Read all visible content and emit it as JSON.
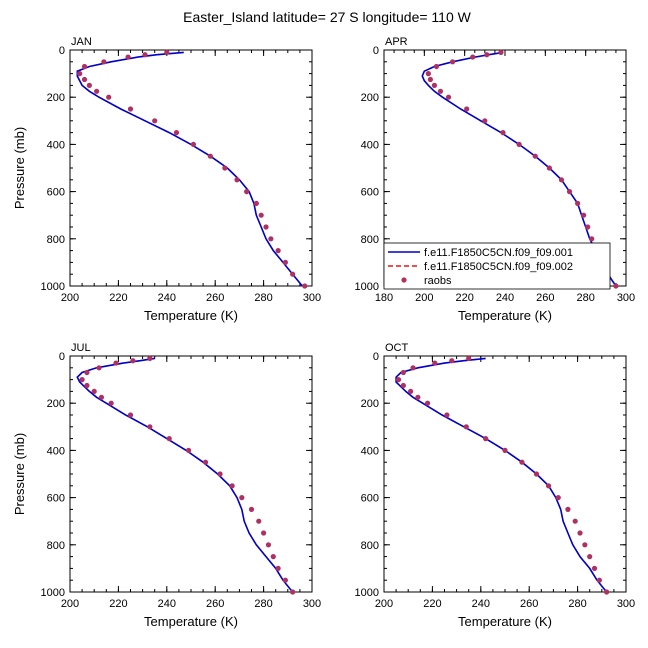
{
  "title": "Easter_Island  latitude= 27 S longitude= 110 W",
  "colors": {
    "model1": "#0000cc",
    "model2": "#ee1111",
    "obs": "#b03060"
  },
  "legend": [
    {
      "label": "f.e11.F1850C5CN.f09_f09.001",
      "style": "solid",
      "color": "#0000cc"
    },
    {
      "label": "f.e11.F1850C5CN.f09_f09.002",
      "style": "dashed",
      "color": "#ee1111"
    },
    {
      "label": "raobs",
      "style": "marker",
      "color": "#b03060"
    }
  ],
  "chart_data": [
    {
      "type": "line",
      "panel": "JAN",
      "xlabel": "Temperature (K)",
      "ylabel": "Pressure (mb)",
      "xlim": [
        200,
        300
      ],
      "ylim": [
        0,
        1000
      ],
      "y_inverted": true,
      "xticks": [
        200,
        220,
        240,
        260,
        280,
        300
      ],
      "yticks": [
        0,
        200,
        400,
        600,
        800,
        1000
      ],
      "legend": false,
      "model": {
        "pressure": [
          10,
          20,
          30,
          50,
          70,
          90,
          110,
          130,
          150,
          175,
          200,
          250,
          300,
          350,
          400,
          450,
          500,
          550,
          600,
          650,
          700,
          750,
          800,
          850,
          900,
          950,
          1000
        ],
        "temperature": [
          247,
          236,
          228,
          217,
          208,
          203,
          203,
          204,
          205,
          208,
          212,
          221,
          231,
          241,
          250,
          258,
          265,
          270,
          274,
          276,
          277,
          279,
          281,
          284,
          288,
          292,
          296
        ]
      },
      "raobs": {
        "pressure": [
          10,
          20,
          30,
          50,
          70,
          100,
          125,
          150,
          175,
          200,
          250,
          300,
          350,
          400,
          450,
          500,
          550,
          600,
          650,
          700,
          750,
          800,
          850,
          900,
          950,
          1000
        ],
        "temperature": [
          240,
          231,
          224,
          214,
          206,
          204,
          206,
          208,
          211,
          216,
          225,
          235,
          244,
          251,
          258,
          264,
          269,
          273,
          277,
          279,
          281,
          283,
          286,
          289,
          292,
          297
        ]
      }
    },
    {
      "type": "line",
      "panel": "APR",
      "xlabel": "Temperature (K)",
      "ylabel": "",
      "xlim": [
        180,
        300
      ],
      "ylim": [
        0,
        1000
      ],
      "y_inverted": true,
      "xticks": [
        180,
        200,
        220,
        240,
        260,
        280,
        300
      ],
      "yticks": [
        0,
        200,
        400,
        600,
        800,
        1000
      ],
      "legend": true,
      "model": {
        "pressure": [
          10,
          20,
          30,
          50,
          70,
          90,
          110,
          130,
          150,
          175,
          200,
          250,
          300,
          350,
          400,
          450,
          500,
          550,
          600,
          650,
          700,
          750,
          800,
          850,
          900,
          950,
          1000
        ],
        "temperature": [
          239,
          232,
          225,
          214,
          205,
          200,
          199,
          200,
          202,
          205,
          209,
          218,
          228,
          238,
          247,
          255,
          262,
          268,
          272,
          276,
          278,
          280,
          282,
          285,
          288,
          291,
          295
        ]
      },
      "raobs": {
        "pressure": [
          10,
          20,
          30,
          50,
          70,
          100,
          125,
          150,
          175,
          200,
          250,
          300,
          350,
          400,
          450,
          500,
          550,
          600,
          650,
          700,
          750,
          800,
          850,
          900,
          950,
          1000
        ],
        "temperature": [
          238,
          231,
          224,
          214,
          206,
          202,
          203,
          205,
          208,
          212,
          221,
          230,
          239,
          247,
          255,
          262,
          268,
          272,
          276,
          279,
          281,
          283,
          285,
          287,
          290,
          295
        ]
      }
    },
    {
      "type": "line",
      "panel": "JUL",
      "xlabel": "Temperature (K)",
      "ylabel": "Pressure (mb)",
      "xlim": [
        200,
        300
      ],
      "ylim": [
        0,
        1000
      ],
      "y_inverted": true,
      "xticks": [
        200,
        220,
        240,
        260,
        280,
        300
      ],
      "yticks": [
        0,
        200,
        400,
        600,
        800,
        1000
      ],
      "legend": false,
      "model": {
        "pressure": [
          10,
          20,
          30,
          50,
          70,
          90,
          110,
          130,
          150,
          175,
          200,
          250,
          300,
          350,
          400,
          450,
          500,
          550,
          600,
          650,
          700,
          750,
          800,
          850,
          900,
          950,
          1000
        ],
        "temperature": [
          235,
          229,
          222,
          211,
          205,
          203,
          204,
          206,
          208,
          211,
          215,
          223,
          232,
          240,
          248,
          255,
          261,
          266,
          269,
          271,
          272,
          274,
          277,
          281,
          285,
          288,
          292
        ]
      },
      "raobs": {
        "pressure": [
          10,
          20,
          30,
          50,
          70,
          100,
          125,
          150,
          175,
          200,
          250,
          300,
          350,
          400,
          450,
          500,
          550,
          600,
          650,
          700,
          750,
          800,
          850,
          900,
          950,
          1000
        ],
        "temperature": [
          233,
          226,
          219,
          212,
          207,
          205,
          207,
          210,
          213,
          217,
          225,
          233,
          241,
          249,
          256,
          262,
          267,
          271,
          275,
          278,
          280,
          282,
          284,
          286,
          289,
          292
        ]
      }
    },
    {
      "type": "line",
      "panel": "OCT",
      "xlabel": "Temperature (K)",
      "ylabel": "",
      "xlim": [
        200,
        300
      ],
      "ylim": [
        0,
        1000
      ],
      "y_inverted": true,
      "xticks": [
        200,
        220,
        240,
        260,
        280,
        300
      ],
      "yticks": [
        0,
        200,
        400,
        600,
        800,
        1000
      ],
      "legend": false,
      "model": {
        "pressure": [
          10,
          20,
          30,
          50,
          70,
          90,
          110,
          130,
          150,
          175,
          200,
          250,
          300,
          350,
          400,
          450,
          500,
          550,
          600,
          650,
          700,
          750,
          800,
          850,
          900,
          950,
          1000
        ],
        "temperature": [
          242,
          233,
          225,
          214,
          207,
          205,
          205,
          207,
          209,
          212,
          216,
          224,
          233,
          242,
          250,
          257,
          263,
          268,
          271,
          273,
          274,
          276,
          278,
          281,
          285,
          288,
          292
        ]
      },
      "raobs": {
        "pressure": [
          10,
          20,
          30,
          50,
          70,
          100,
          125,
          150,
          175,
          200,
          250,
          300,
          350,
          400,
          450,
          500,
          550,
          600,
          650,
          700,
          750,
          800,
          850,
          900,
          950,
          1000
        ],
        "temperature": [
          235,
          228,
          221,
          212,
          208,
          206,
          208,
          211,
          214,
          218,
          226,
          234,
          242,
          250,
          257,
          263,
          268,
          272,
          276,
          279,
          281,
          283,
          285,
          287,
          289,
          292
        ]
      }
    }
  ]
}
